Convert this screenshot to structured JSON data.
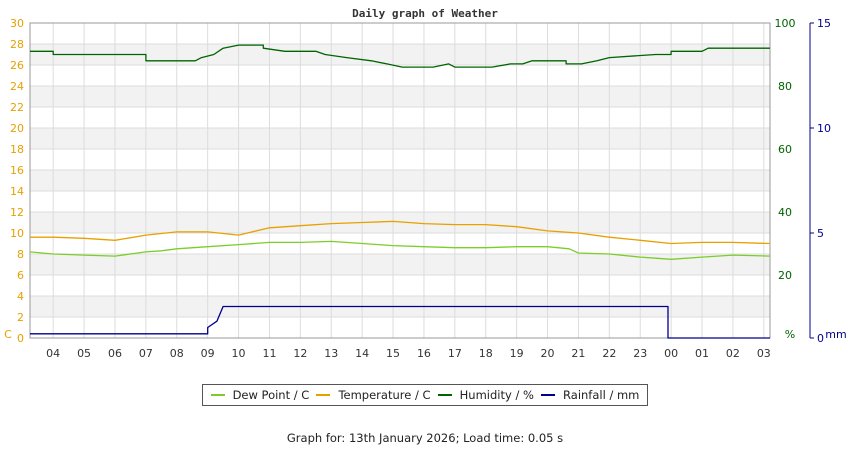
{
  "chart_data": {
    "type": "line",
    "title": "Daily graph of Weather",
    "x_tick_labels": [
      "04",
      "05",
      "06",
      "07",
      "08",
      "09",
      "10",
      "11",
      "12",
      "13",
      "14",
      "15",
      "16",
      "17",
      "18",
      "19",
      "20",
      "21",
      "22",
      "23",
      "00",
      "01",
      "02",
      "03"
    ],
    "x_range_hours": [
      3.25,
      27.2
    ],
    "left_axis": {
      "unit_label": "C",
      "range": [
        0,
        30
      ],
      "ticks": [
        0,
        2,
        4,
        6,
        8,
        10,
        12,
        14,
        16,
        18,
        20,
        22,
        24,
        26,
        28,
        30
      ],
      "color": "#e8a000"
    },
    "right_axis_1": {
      "unit_label": "%",
      "range": [
        0,
        100
      ],
      "ticks": [
        0,
        20,
        40,
        60,
        80,
        100
      ],
      "color": "#006400"
    },
    "right_axis_2": {
      "unit_label": "mm",
      "range": [
        0,
        15
      ],
      "ticks": [
        0,
        5,
        10,
        15
      ],
      "color": "#00008b"
    },
    "grid": true,
    "legend_position": "bottom",
    "series": [
      {
        "name": "Dew Point / C",
        "axis": "left",
        "color": "#7ccd2a",
        "points": [
          [
            3.25,
            8.2
          ],
          [
            4.0,
            8.0
          ],
          [
            5.0,
            7.9
          ],
          [
            6.0,
            7.8
          ],
          [
            6.5,
            8.0
          ],
          [
            7.0,
            8.2
          ],
          [
            7.5,
            8.3
          ],
          [
            8.0,
            8.5
          ],
          [
            9.0,
            8.7
          ],
          [
            10.0,
            8.9
          ],
          [
            11.0,
            9.1
          ],
          [
            12.0,
            9.1
          ],
          [
            13.0,
            9.2
          ],
          [
            14.0,
            9.0
          ],
          [
            15.0,
            8.8
          ],
          [
            16.0,
            8.7
          ],
          [
            17.0,
            8.6
          ],
          [
            18.0,
            8.6
          ],
          [
            19.0,
            8.7
          ],
          [
            20.0,
            8.7
          ],
          [
            20.7,
            8.5
          ],
          [
            21.0,
            8.1
          ],
          [
            22.0,
            8.0
          ],
          [
            23.0,
            7.7
          ],
          [
            23.5,
            7.6
          ],
          [
            24.0,
            7.5
          ],
          [
            25.0,
            7.7
          ],
          [
            26.0,
            7.9
          ],
          [
            27.2,
            7.8
          ]
        ]
      },
      {
        "name": "Temperature / C",
        "axis": "left",
        "color": "#e8a000",
        "points": [
          [
            3.25,
            9.6
          ],
          [
            4.0,
            9.6
          ],
          [
            5.0,
            9.5
          ],
          [
            6.0,
            9.3
          ],
          [
            7.0,
            9.8
          ],
          [
            8.0,
            10.1
          ],
          [
            9.0,
            10.1
          ],
          [
            10.0,
            9.8
          ],
          [
            11.0,
            10.5
          ],
          [
            12.0,
            10.7
          ],
          [
            13.0,
            10.9
          ],
          [
            14.0,
            11.0
          ],
          [
            15.0,
            11.1
          ],
          [
            16.0,
            10.9
          ],
          [
            17.0,
            10.8
          ],
          [
            18.0,
            10.8
          ],
          [
            19.0,
            10.6
          ],
          [
            20.0,
            10.2
          ],
          [
            21.0,
            10.0
          ],
          [
            22.0,
            9.6
          ],
          [
            23.0,
            9.3
          ],
          [
            24.0,
            9.0
          ],
          [
            25.0,
            9.1
          ],
          [
            26.0,
            9.1
          ],
          [
            27.2,
            9.0
          ]
        ]
      },
      {
        "name": "Humidity / %",
        "axis": "right_axis_1",
        "color": "#006400",
        "points": [
          [
            3.25,
            91
          ],
          [
            4.0,
            91
          ],
          [
            4.0,
            90
          ],
          [
            7.0,
            90
          ],
          [
            7.0,
            88
          ],
          [
            8.6,
            88
          ],
          [
            8.8,
            89
          ],
          [
            9.2,
            90
          ],
          [
            9.5,
            92
          ],
          [
            10.0,
            93
          ],
          [
            10.8,
            93
          ],
          [
            10.8,
            92
          ],
          [
            11.5,
            91
          ],
          [
            12.5,
            91
          ],
          [
            12.8,
            90
          ],
          [
            13.5,
            89
          ],
          [
            14.3,
            88
          ],
          [
            14.8,
            87
          ],
          [
            15.3,
            86
          ],
          [
            16.3,
            86
          ],
          [
            16.8,
            87
          ],
          [
            17.0,
            86
          ],
          [
            18.2,
            86
          ],
          [
            18.8,
            87
          ],
          [
            19.2,
            87
          ],
          [
            19.5,
            88
          ],
          [
            20.6,
            88
          ],
          [
            20.6,
            87
          ],
          [
            21.1,
            87
          ],
          [
            21.6,
            88
          ],
          [
            22.0,
            89
          ],
          [
            23.5,
            90
          ],
          [
            24.0,
            90
          ],
          [
            24.0,
            91
          ],
          [
            25.0,
            91
          ],
          [
            25.2,
            92
          ],
          [
            27.2,
            92
          ]
        ]
      },
      {
        "name": "Rainfall / mm",
        "axis": "right_axis_2",
        "color": "#00008b",
        "points": [
          [
            3.25,
            0.2
          ],
          [
            9.0,
            0.2
          ],
          [
            9.0,
            0.5
          ],
          [
            9.3,
            0.8
          ],
          [
            9.5,
            1.5
          ],
          [
            9.6,
            1.5
          ],
          [
            9.6,
            1.5
          ],
          [
            23.9,
            1.5
          ],
          [
            23.9,
            0.0
          ],
          [
            27.2,
            0.0
          ]
        ]
      }
    ]
  },
  "legend": [
    {
      "label": "Dew Point / C",
      "color": "#7ccd2a"
    },
    {
      "label": "Temperature / C",
      "color": "#e8a000"
    },
    {
      "label": "Humidity / %",
      "color": "#006400"
    },
    {
      "label": "Rainfall / mm",
      "color": "#00008b"
    }
  ],
  "footer_text": "Graph for: 13th January 2026; Load time: 0.05 s"
}
